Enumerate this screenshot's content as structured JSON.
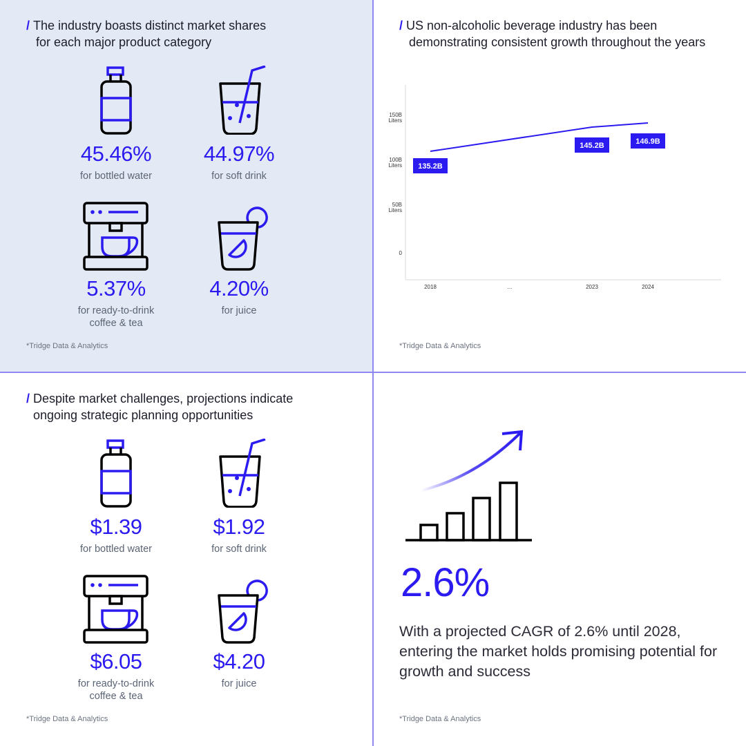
{
  "colors": {
    "accent": "#2b1bf0",
    "divider": "#8f87f2",
    "panel_bg": "#e4eaf5"
  },
  "market_shares": {
    "title_line1": "The industry boasts distinct market shares",
    "title_line2": "for each major product category",
    "items": [
      {
        "icon": "bottle-icon",
        "value": "45.46%",
        "caption": [
          "for bottled water"
        ]
      },
      {
        "icon": "soft-drink-icon",
        "value": "44.97%",
        "caption": [
          "for soft drink"
        ]
      },
      {
        "icon": "coffee-machine-icon",
        "value": "5.37%",
        "caption": [
          "for ready-to-drink",
          "coffee & tea"
        ]
      },
      {
        "icon": "juice-icon",
        "value": "4.20%",
        "caption": [
          "for juice"
        ]
      }
    ],
    "source": "*Tridge Data & Analytics"
  },
  "growth_chart": {
    "title_line1": "US non-alcoholic beverage industry has been",
    "title_line2": "demonstrating consistent growth throughout the years",
    "source": "*Tridge Data & Analytics"
  },
  "chart_data": {
    "type": "line",
    "title": "US non-alcoholic beverage industry has been demonstrating consistent growth throughout the years",
    "categories": [
      "2018",
      "...",
      "2023",
      "2024"
    ],
    "points": [
      {
        "x": "2018",
        "y": 135.2,
        "label": "135.2B"
      },
      {
        "x": "2023",
        "y": 145.2,
        "label": "145.2B"
      },
      {
        "x": "2024",
        "y": 146.9,
        "label": "146.9B"
      }
    ],
    "ylabel": "Liters",
    "yticks": [
      {
        "value": 150,
        "label": [
          "150B",
          "Liters"
        ]
      },
      {
        "value": 100,
        "label": [
          "100B",
          "Liters"
        ]
      },
      {
        "value": 50,
        "label": [
          "50B",
          "Liters"
        ]
      },
      {
        "value": 0,
        "label": [
          "0"
        ]
      }
    ],
    "ylim": [
      0,
      150
    ],
    "grid": false
  },
  "prices": {
    "title_line1": "Despite market challenges, projections indicate",
    "title_line2": "ongoing strategic planning opportunities",
    "items": [
      {
        "icon": "bottle-icon",
        "value": "$1.39",
        "caption": [
          "for bottled water"
        ]
      },
      {
        "icon": "soft-drink-icon",
        "value": "$1.92",
        "caption": [
          "for soft drink"
        ]
      },
      {
        "icon": "coffee-machine-icon",
        "value": "$6.05",
        "caption": [
          "for ready-to-drink",
          "coffee & tea"
        ]
      },
      {
        "icon": "juice-icon",
        "value": "$4.20",
        "caption": [
          "for juice"
        ]
      }
    ],
    "source": "*Tridge Data & Analytics"
  },
  "cagr": {
    "value": "2.6%",
    "description": "With a projected CAGR of 2.6% until 2028, entering the market holds promising potential for growth and success",
    "source": "*Tridge Data & Analytics"
  }
}
